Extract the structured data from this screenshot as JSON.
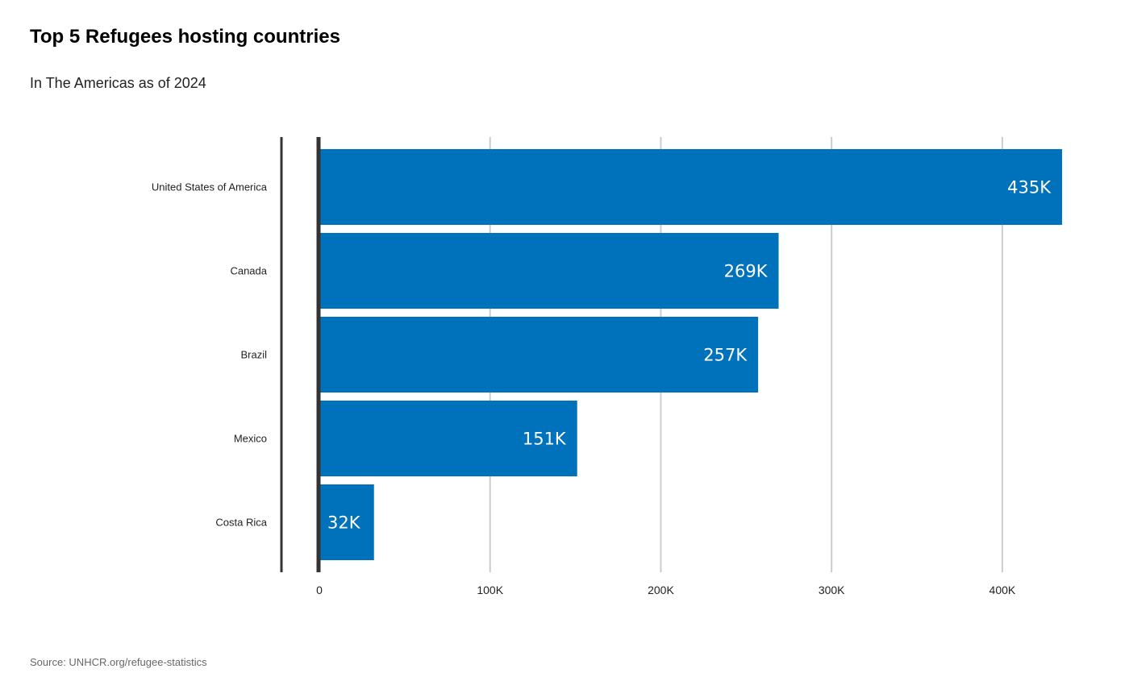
{
  "header": {
    "title": "Top 5 Refugees hosting countries",
    "subtitle": "In The Americas as of 2024"
  },
  "footer": {
    "source": "Source: UNHCR.org/refugee-statistics"
  },
  "chart_data": {
    "type": "bar",
    "orientation": "horizontal",
    "title": "Top 5 Refugees hosting countries",
    "subtitle": "In The Americas as of 2024",
    "categories": [
      "United States of America",
      "Canada",
      "Brazil",
      "Mexico",
      "Costa Rica"
    ],
    "values": [
      435000,
      269000,
      257000,
      151000,
      32000
    ],
    "data_labels": [
      "435K",
      "269K",
      "257K",
      "151K",
      "32K"
    ],
    "x_ticks": [
      0,
      100000,
      200000,
      300000,
      400000
    ],
    "x_tick_labels": [
      "0",
      "100K",
      "200K",
      "300K",
      "400K"
    ],
    "xlim": [
      0,
      435000
    ],
    "xlabel": "",
    "ylabel": "",
    "grid": "vertical",
    "legend": "none",
    "colors": {
      "bar": "#0072bc",
      "grid": "#cccccc",
      "axis": "#333333",
      "bar_label": "#ffffff"
    }
  }
}
